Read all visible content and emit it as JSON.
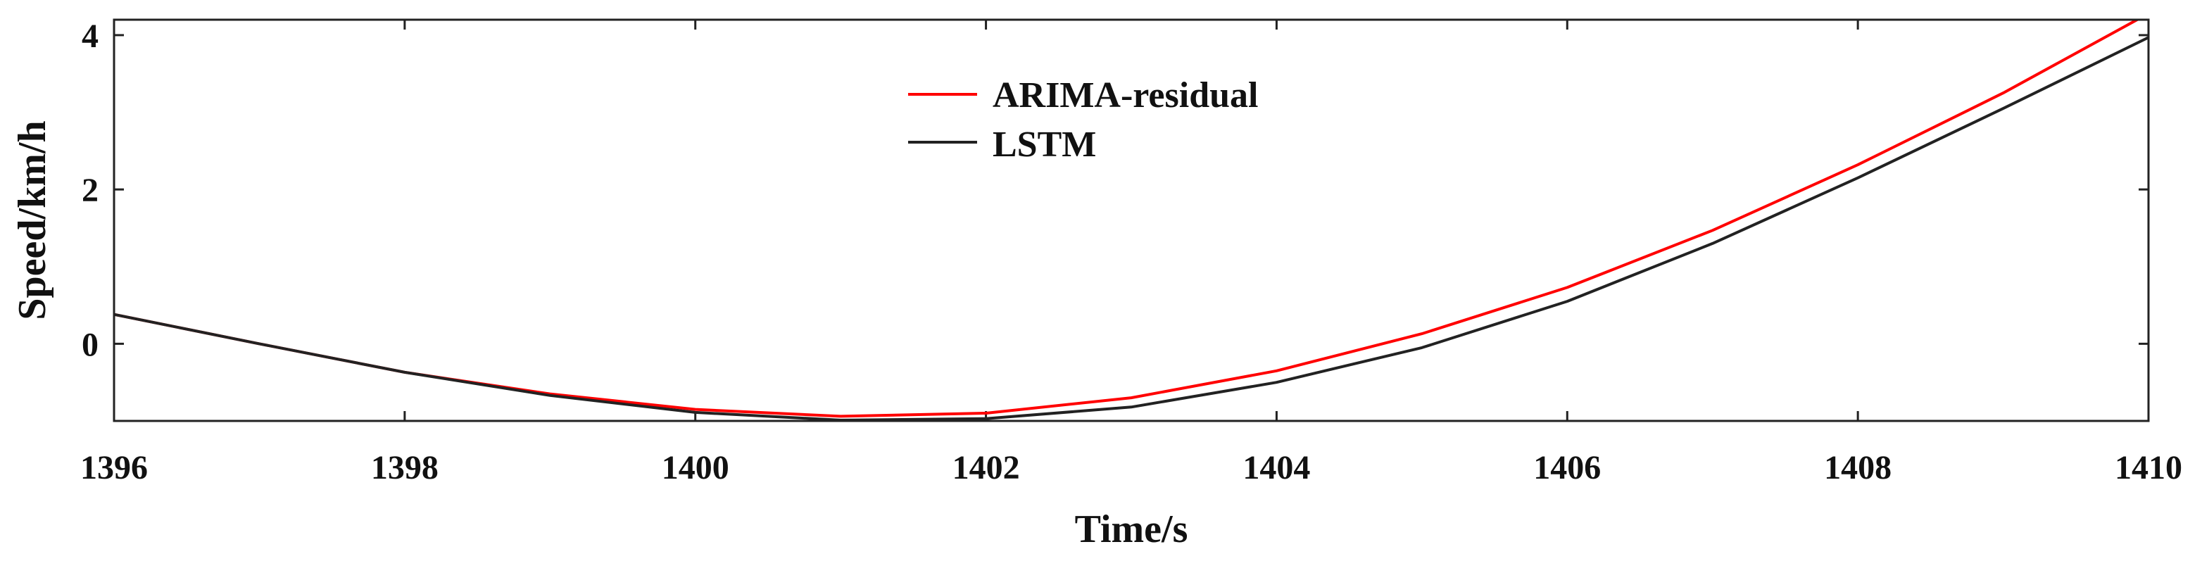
{
  "chart_data": {
    "type": "line",
    "title": "",
    "xlabel": "Time/s",
    "ylabel": "Speed/km/h",
    "xlim": [
      1396,
      1410
    ],
    "ylim": [
      -1,
      4.2
    ],
    "xticks": [
      1396,
      1398,
      1400,
      1402,
      1404,
      1406,
      1408,
      1410
    ],
    "yticks": [
      0,
      2,
      4
    ],
    "grid": false,
    "legend_position": "top-center",
    "series": [
      {
        "name": "ARIMA-residual",
        "color": "#ff0000",
        "x": [
          1396,
          1397,
          1398,
          1399,
          1400,
          1401,
          1402,
          1403,
          1404,
          1405,
          1406,
          1407,
          1408,
          1409,
          1410
        ],
        "y": [
          0.38,
          0.0,
          -0.37,
          -0.65,
          -0.85,
          -0.94,
          -0.9,
          -0.7,
          -0.35,
          0.13,
          0.73,
          1.47,
          2.32,
          3.25,
          4.28
        ]
      },
      {
        "name": "LSTM",
        "color": "#222222",
        "x": [
          1396,
          1397,
          1398,
          1399,
          1400,
          1401,
          1402,
          1403,
          1404,
          1405,
          1406,
          1407,
          1408,
          1409,
          1410
        ],
        "y": [
          0.38,
          0.0,
          -0.37,
          -0.67,
          -0.89,
          -0.99,
          -0.97,
          -0.82,
          -0.5,
          -0.05,
          0.55,
          1.3,
          2.15,
          3.05,
          3.97
        ]
      }
    ]
  }
}
